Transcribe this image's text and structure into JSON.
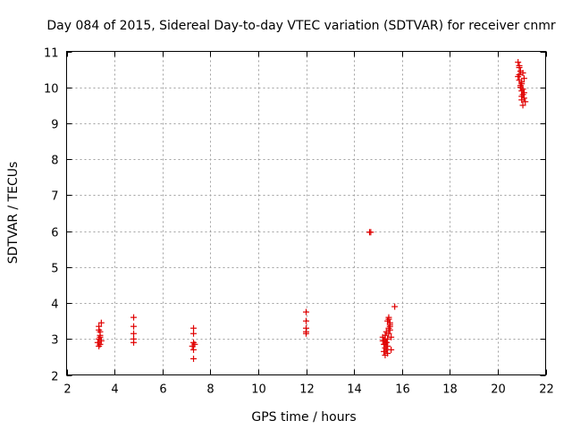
{
  "chart_data": {
    "type": "scatter",
    "title": "Day 084 of 2015, Sidereal Day-to-day VTEC variation (SDTVAR) for receiver cnmr",
    "xlabel": "GPS time / hours",
    "ylabel": "SDTVAR / TECUs",
    "xlim": [
      2,
      22
    ],
    "ylim": [
      2,
      11
    ],
    "xticks": [
      2,
      4,
      6,
      8,
      10,
      12,
      14,
      16,
      18,
      20,
      22
    ],
    "yticks": [
      2,
      3,
      4,
      5,
      6,
      7,
      8,
      9,
      10,
      11
    ],
    "grid": true,
    "marker": "+",
    "color": "#e00000",
    "series": [
      {
        "name": "SDTVAR",
        "x": [
          3.35,
          3.4,
          3.4,
          3.35,
          3.3,
          3.4,
          3.45,
          3.35,
          3.4,
          3.45,
          3.35,
          4.8,
          4.8,
          4.8,
          4.8,
          4.8,
          7.3,
          7.3,
          7.3,
          7.25,
          7.3,
          7.35,
          7.3,
          12.0,
          12.0,
          12.0,
          12.0,
          12.0,
          14.65,
          14.7,
          15.2,
          15.25,
          15.3,
          15.25,
          15.3,
          15.35,
          15.3,
          15.4,
          15.35,
          15.45,
          15.5,
          15.4,
          15.45,
          15.5,
          15.5,
          15.45,
          15.55,
          15.4,
          15.35,
          15.3,
          15.25,
          15.3,
          15.2,
          15.35,
          15.4,
          15.5,
          15.45,
          15.55,
          15.7,
          20.85,
          20.9,
          20.95,
          20.9,
          20.85,
          20.9,
          21.0,
          20.95,
          21.05,
          21.0,
          21.1,
          21.05,
          21.0,
          21.1,
          21.15,
          21.05,
          20.95,
          21.0,
          21.1,
          21.05,
          20.9,
          21.0
        ],
        "y": [
          3.35,
          3.2,
          3.1,
          3.0,
          2.9,
          2.85,
          3.45,
          3.25,
          3.05,
          2.95,
          2.8,
          3.6,
          3.35,
          3.15,
          3.0,
          2.9,
          3.3,
          3.15,
          2.9,
          2.8,
          2.7,
          2.85,
          2.45,
          3.75,
          3.5,
          3.3,
          3.2,
          3.15,
          5.97,
          5.97,
          2.95,
          2.85,
          2.75,
          2.65,
          2.55,
          2.9,
          3.1,
          3.0,
          3.2,
          3.3,
          3.4,
          3.5,
          3.6,
          3.35,
          3.25,
          3.15,
          3.05,
          2.8,
          2.7,
          3.0,
          2.95,
          2.85,
          3.05,
          2.9,
          2.6,
          3.45,
          3.55,
          2.7,
          3.9,
          10.7,
          10.55,
          10.45,
          10.35,
          10.3,
          10.2,
          10.1,
          10.0,
          9.95,
          9.9,
          9.85,
          9.8,
          9.75,
          9.7,
          9.6,
          9.5,
          10.05,
          10.15,
          10.25,
          10.4,
          10.6,
          9.65
        ]
      }
    ]
  }
}
